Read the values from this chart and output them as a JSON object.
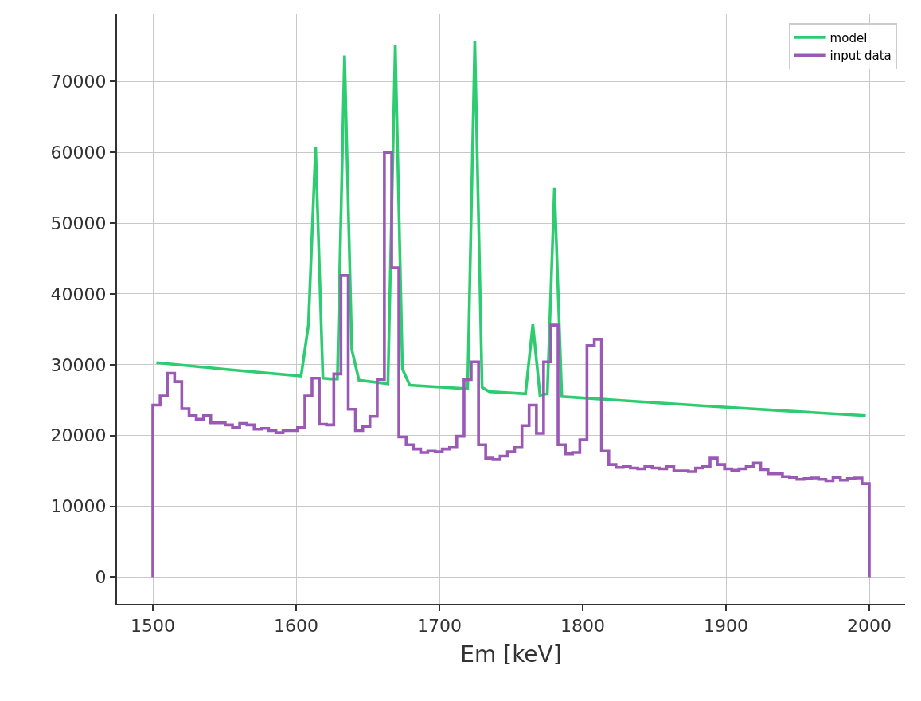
{
  "chart_data": {
    "type": "line",
    "xlabel": "Em [keV]",
    "xlim": [
      1475,
      2025
    ],
    "ylim": [
      -3780,
      79500
    ],
    "xticks": [
      1500,
      1600,
      1700,
      1800,
      1900,
      2000
    ],
    "yticks": [
      0,
      10000,
      20000,
      30000,
      40000,
      50000,
      60000,
      70000
    ],
    "grid": true,
    "legend": "top right",
    "marker": "none",
    "line_style": "solid",
    "series": [
      {
        "name": "model",
        "color": "#2ecc71",
        "x": [
          1502.5,
          1553.0,
          1603.5,
          1608.6,
          1613.6,
          1618.7,
          1623.7,
          1628.8,
          1633.8,
          1638.9,
          1643.9,
          1664.1,
          1669.2,
          1674.2,
          1679.3,
          1719.7,
          1724.7,
          1729.8,
          1734.8,
          1760.1,
          1765.2,
          1770.2,
          1775.3,
          1780.3,
          1785.4,
          1891.4,
          1997.5
        ],
        "values": [
          30300,
          29300,
          28400,
          35600,
          60800,
          28100,
          28000,
          28000,
          73700,
          32100,
          27800,
          27300,
          75200,
          29400,
          27100,
          26600,
          75700,
          26800,
          26200,
          25900,
          35700,
          25700,
          25900,
          55000,
          25500,
          24100,
          22800
        ]
      },
      {
        "name": "input data",
        "type": "step",
        "color": "#9b59b6",
        "x": [
          1500.0,
          1500.0,
          1505.1,
          1510.1,
          1515.2,
          1520.2,
          1525.3,
          1530.3,
          1535.4,
          1540.4,
          1545.5,
          1550.5,
          1555.6,
          1560.6,
          1565.7,
          1570.7,
          1575.8,
          1580.8,
          1585.9,
          1590.9,
          1596.0,
          1601.0,
          1606.1,
          1611.1,
          1616.2,
          1621.2,
          1626.3,
          1631.3,
          1636.4,
          1641.4,
          1646.5,
          1651.5,
          1656.6,
          1661.6,
          1666.7,
          1671.7,
          1676.8,
          1681.8,
          1686.9,
          1691.9,
          1697.0,
          1702.0,
          1707.1,
          1712.1,
          1717.2,
          1722.2,
          1727.3,
          1732.3,
          1737.4,
          1742.4,
          1747.5,
          1752.5,
          1757.6,
          1762.6,
          1767.7,
          1772.7,
          1777.8,
          1782.8,
          1787.9,
          1792.9,
          1798.0,
          1803.0,
          1808.1,
          1813.1,
          1818.2,
          1823.2,
          1828.3,
          1833.3,
          1838.4,
          1843.4,
          1848.5,
          1853.5,
          1858.6,
          1863.6,
          1868.7,
          1873.7,
          1878.8,
          1883.8,
          1888.9,
          1893.9,
          1899.0,
          1904.0,
          1909.1,
          1914.1,
          1919.2,
          1924.2,
          1929.3,
          1934.3,
          1939.4,
          1944.4,
          1949.5,
          1954.5,
          1959.6,
          1964.6,
          1969.7,
          1974.7,
          1979.8,
          1984.8,
          1989.9,
          1994.9,
          2000.0
        ],
        "values": [
          0,
          24300,
          25600,
          28800,
          27600,
          23800,
          22800,
          22300,
          22800,
          21800,
          21800,
          21500,
          21100,
          21700,
          21500,
          20900,
          21000,
          20700,
          20400,
          20700,
          20700,
          21100,
          25600,
          28100,
          21600,
          21500,
          28700,
          42600,
          23700,
          20700,
          21300,
          22700,
          27900,
          60000,
          43700,
          19800,
          18700,
          18100,
          17600,
          17800,
          17700,
          18100,
          18300,
          19900,
          27900,
          30400,
          18700,
          16800,
          16600,
          17100,
          17700,
          18300,
          21400,
          24300,
          20300,
          30400,
          35600,
          18700,
          17400,
          17600,
          19400,
          32700,
          33600,
          17800,
          15900,
          15500,
          15600,
          15400,
          15300,
          15600,
          15400,
          15300,
          15600,
          15000,
          15000,
          14900,
          15400,
          15600,
          16800,
          15900,
          15300,
          15100,
          15300,
          15600,
          16100,
          15200,
          14600,
          14600,
          14200,
          14100,
          13800,
          13900,
          14000,
          13800,
          13600,
          14100,
          13700,
          13900,
          14000,
          13200,
          0
        ]
      }
    ]
  }
}
